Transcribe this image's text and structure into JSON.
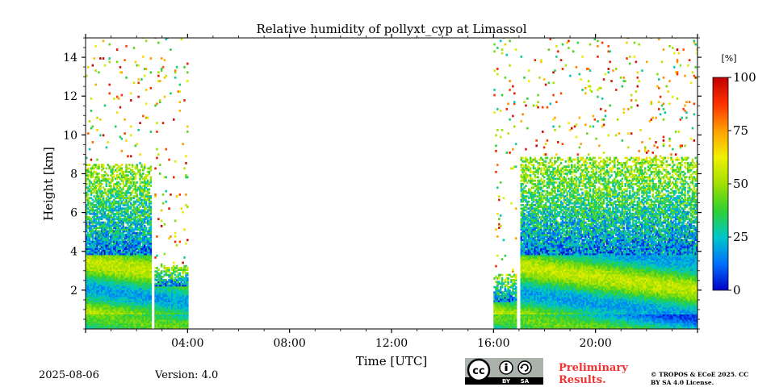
{
  "chart_data": {
    "type": "heatmap",
    "title": "Relative humidity of pollyxt_cyp at Limassol",
    "xlabel": "Time [UTC]",
    "ylabel": "Height [km]",
    "xlim": [
      0,
      24
    ],
    "ylim": [
      0,
      15
    ],
    "x_ticks": [
      {
        "value": 4,
        "label": "04:00"
      },
      {
        "value": 8,
        "label": "08:00"
      },
      {
        "value": 12,
        "label": "12:00"
      },
      {
        "value": 16,
        "label": "16:00"
      },
      {
        "value": 20,
        "label": "20:00"
      }
    ],
    "y_ticks": [
      {
        "value": 2,
        "label": "2"
      },
      {
        "value": 4,
        "label": "4"
      },
      {
        "value": 6,
        "label": "6"
      },
      {
        "value": 8,
        "label": "8"
      },
      {
        "value": 10,
        "label": "10"
      },
      {
        "value": 12,
        "label": "12"
      },
      {
        "value": 14,
        "label": "14"
      }
    ],
    "colorbar": {
      "unit": "[%]",
      "range": [
        0,
        100
      ],
      "ticks": [
        {
          "value": 0,
          "label": "0"
        },
        {
          "value": 25,
          "label": "25"
        },
        {
          "value": 50,
          "label": "50"
        },
        {
          "value": 75,
          "label": "75"
        },
        {
          "value": 100,
          "label": "100"
        }
      ],
      "colormap": [
        "#0000c8",
        "#0070ff",
        "#00c8c8",
        "#30d030",
        "#a0e000",
        "#f0f000",
        "#ffa000",
        "#ff3000",
        "#c00000"
      ]
    },
    "data_segments": [
      {
        "start": 0.0,
        "end": 2.55,
        "boundary_layer_top": 3.8,
        "humid_layer_top": 8.5
      },
      {
        "start": 2.7,
        "end": 4.0,
        "boundary_layer_top": 2.2,
        "humid_layer_top": 3.2
      },
      {
        "start": 16.0,
        "end": 16.85,
        "boundary_layer_top": 1.4,
        "humid_layer_top": 2.8
      },
      {
        "start": 17.05,
        "end": 24.0,
        "boundary_layer_top": 3.8,
        "humid_layer_top": 8.8
      }
    ]
  },
  "footer": {
    "date": "2025-08-06",
    "version": "Version: 4.0",
    "preliminary": "Preliminary Results.",
    "copyright": "© TROPOS & ECoE 2025. CC BY SA 4.0 License.",
    "license_badge": {
      "cc": "cc",
      "by": "BY",
      "sa": "SA"
    }
  }
}
